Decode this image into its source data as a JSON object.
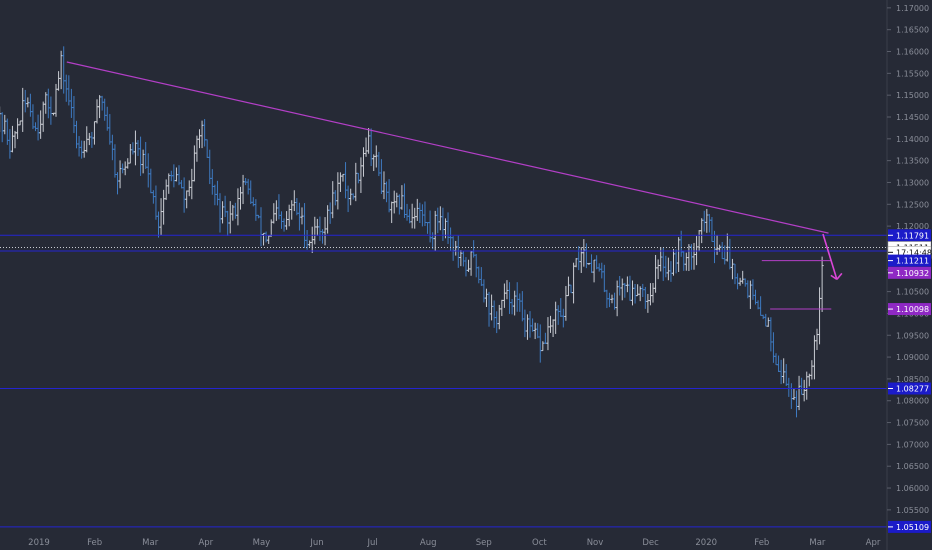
{
  "chart_data": {
    "type": "ohlc",
    "title": "",
    "xlabel": "",
    "ylabel": "",
    "ylim": [
      1.0497,
      1.1718
    ],
    "y_ticks": [
      "1.17000",
      "1.16500",
      "1.16000",
      "1.15500",
      "1.15000",
      "1.14500",
      "1.14000",
      "1.13500",
      "1.13000",
      "1.12500",
      "1.12000",
      "1.11500",
      "1.11000",
      "1.10500",
      "1.10000",
      "1.09500",
      "1.09000",
      "1.08500",
      "1.08000",
      "1.07500",
      "1.07000",
      "1.06500",
      "1.06000",
      "1.05500"
    ],
    "x_ticks": [
      {
        "label": "2019",
        "month": 0
      },
      {
        "label": "Feb",
        "month": 1
      },
      {
        "label": "Mar",
        "month": 2
      },
      {
        "label": "Apr",
        "month": 3
      },
      {
        "label": "May",
        "month": 4
      },
      {
        "label": "Jun",
        "month": 5
      },
      {
        "label": "Jul",
        "month": 6
      },
      {
        "label": "Aug",
        "month": 7
      },
      {
        "label": "Sep",
        "month": 8
      },
      {
        "label": "Oct",
        "month": 9
      },
      {
        "label": "Nov",
        "month": 10
      },
      {
        "label": "Dec",
        "month": 11
      },
      {
        "label": "2020",
        "month": 12
      },
      {
        "label": "Feb",
        "month": 13
      },
      {
        "label": "Mar",
        "month": 14
      },
      {
        "label": "Apr",
        "month": 15
      }
    ],
    "price_path": [
      [
        -0.8,
        1.145
      ],
      [
        -0.6,
        1.142
      ],
      [
        -0.5,
        1.138
      ],
      [
        -0.35,
        1.145
      ],
      [
        -0.2,
        1.149
      ],
      [
        -0.05,
        1.142
      ],
      [
        0.1,
        1.148
      ],
      [
        0.25,
        1.147
      ],
      [
        0.4,
        1.157
      ],
      [
        0.55,
        1.148
      ],
      [
        0.7,
        1.138
      ],
      [
        0.85,
        1.14
      ],
      [
        1.0,
        1.142
      ],
      [
        1.1,
        1.151
      ],
      [
        1.25,
        1.142
      ],
      [
        1.4,
        1.131
      ],
      [
        1.55,
        1.134
      ],
      [
        1.7,
        1.138
      ],
      [
        1.85,
        1.135
      ],
      [
        2.0,
        1.13
      ],
      [
        2.15,
        1.121
      ],
      [
        2.3,
        1.13
      ],
      [
        2.45,
        1.132
      ],
      [
        2.6,
        1.126
      ],
      [
        2.75,
        1.131
      ],
      [
        2.9,
        1.144
      ],
      [
        3.05,
        1.132
      ],
      [
        3.2,
        1.125
      ],
      [
        3.35,
        1.121
      ],
      [
        3.5,
        1.123
      ],
      [
        3.65,
        1.13
      ],
      [
        3.8,
        1.127
      ],
      [
        3.95,
        1.12
      ],
      [
        4.1,
        1.117
      ],
      [
        4.25,
        1.123
      ],
      [
        4.4,
        1.119
      ],
      [
        4.55,
        1.125
      ],
      [
        4.7,
        1.122
      ],
      [
        4.85,
        1.116
      ],
      [
        5.0,
        1.12
      ],
      [
        5.15,
        1.12
      ],
      [
        5.3,
        1.127
      ],
      [
        5.45,
        1.131
      ],
      [
        5.6,
        1.126
      ],
      [
        5.75,
        1.133
      ],
      [
        5.9,
        1.14
      ],
      [
        6.05,
        1.135
      ],
      [
        6.2,
        1.128
      ],
      [
        6.35,
        1.123
      ],
      [
        6.5,
        1.126
      ],
      [
        6.65,
        1.122
      ],
      [
        6.8,
        1.124
      ],
      [
        6.95,
        1.121
      ],
      [
        7.05,
        1.118
      ],
      [
        7.2,
        1.123
      ],
      [
        7.35,
        1.119
      ],
      [
        7.5,
        1.114
      ],
      [
        7.65,
        1.11
      ],
      [
        7.8,
        1.113
      ],
      [
        7.95,
        1.108
      ],
      [
        8.05,
        1.103
      ],
      [
        8.2,
        1.098
      ],
      [
        8.35,
        1.103
      ],
      [
        8.5,
        1.104
      ],
      [
        8.65,
        1.101
      ],
      [
        8.8,
        1.096
      ],
      [
        8.95,
        1.094
      ],
      [
        9.05,
        1.092
      ],
      [
        9.15,
        1.096
      ],
      [
        9.3,
        1.099
      ],
      [
        9.45,
        1.101
      ],
      [
        9.6,
        1.108
      ],
      [
        9.75,
        1.115
      ],
      [
        9.9,
        1.112
      ],
      [
        10.05,
        1.11
      ],
      [
        10.2,
        1.105
      ],
      [
        10.35,
        1.103
      ],
      [
        10.5,
        1.108
      ],
      [
        10.65,
        1.104
      ],
      [
        10.8,
        1.107
      ],
      [
        10.95,
        1.103
      ],
      [
        11.05,
        1.108
      ],
      [
        11.2,
        1.112
      ],
      [
        11.35,
        1.11
      ],
      [
        11.5,
        1.115
      ],
      [
        11.65,
        1.112
      ],
      [
        11.8,
        1.116
      ],
      [
        11.95,
        1.122
      ],
      [
        12.05,
        1.12
      ],
      [
        12.2,
        1.115
      ],
      [
        12.35,
        1.114
      ],
      [
        12.5,
        1.11
      ],
      [
        12.65,
        1.108
      ],
      [
        12.8,
        1.105
      ],
      [
        12.95,
        1.099
      ],
      [
        13.05,
        1.1
      ],
      [
        13.15,
        1.095
      ],
      [
        13.3,
        1.088
      ],
      [
        13.45,
        1.084
      ],
      [
        13.6,
        1.08
      ],
      [
        13.75,
        1.083
      ],
      [
        13.9,
        1.09
      ],
      [
        14.0,
        1.098
      ],
      [
        14.1,
        1.115
      ],
      [
        14.12,
        1.115
      ]
    ],
    "trendline": {
      "from": [
        0.5,
        1.1576
      ],
      "to": [
        14.2,
        1.1184
      ]
    },
    "resistance_lines": [
      1.1179,
      1.1143,
      1.0828,
      1.0511
    ],
    "dashed_line": 1.1151,
    "short_lines": [
      {
        "from": [
          13.0,
          1.1121
        ],
        "to": [
          14.25,
          1.1121
        ]
      },
      {
        "from": [
          13.15,
          1.101
        ],
        "to": [
          14.25,
          1.101
        ]
      }
    ],
    "arrow": {
      "from": [
        14.1,
        1.1182
      ],
      "to": [
        14.35,
        1.1078
      ]
    },
    "price_tags": [
      {
        "value": 1.1179,
        "label": "1.11791",
        "style": "blue"
      },
      {
        "value": 1.1151,
        "label": "1.11511",
        "style": "white"
      },
      {
        "value": 1.114,
        "label": "17:14:48",
        "style": "white"
      },
      {
        "value": 1.1121,
        "label": "1.11211",
        "style": "blue"
      },
      {
        "value": 1.1093,
        "label": "1.10932",
        "style": "purple"
      },
      {
        "value": 1.101,
        "label": "1.10098",
        "style": "purple"
      },
      {
        "value": 1.0828,
        "label": "1.08277",
        "style": "blue"
      },
      {
        "value": 1.0511,
        "label": "1.05109",
        "style": "blue"
      }
    ],
    "colors": {
      "background": "#262a36",
      "bar_white": "#c9ccd3",
      "bar_blue": "#3e7ac1",
      "trendline": "#b33fc7",
      "resistance": "#2424d0",
      "dashed": "#c9ccd3",
      "tag_blue": "#1b1bc9",
      "tag_purple": "#8f29c4",
      "axis_text": "#8a8e99"
    }
  }
}
